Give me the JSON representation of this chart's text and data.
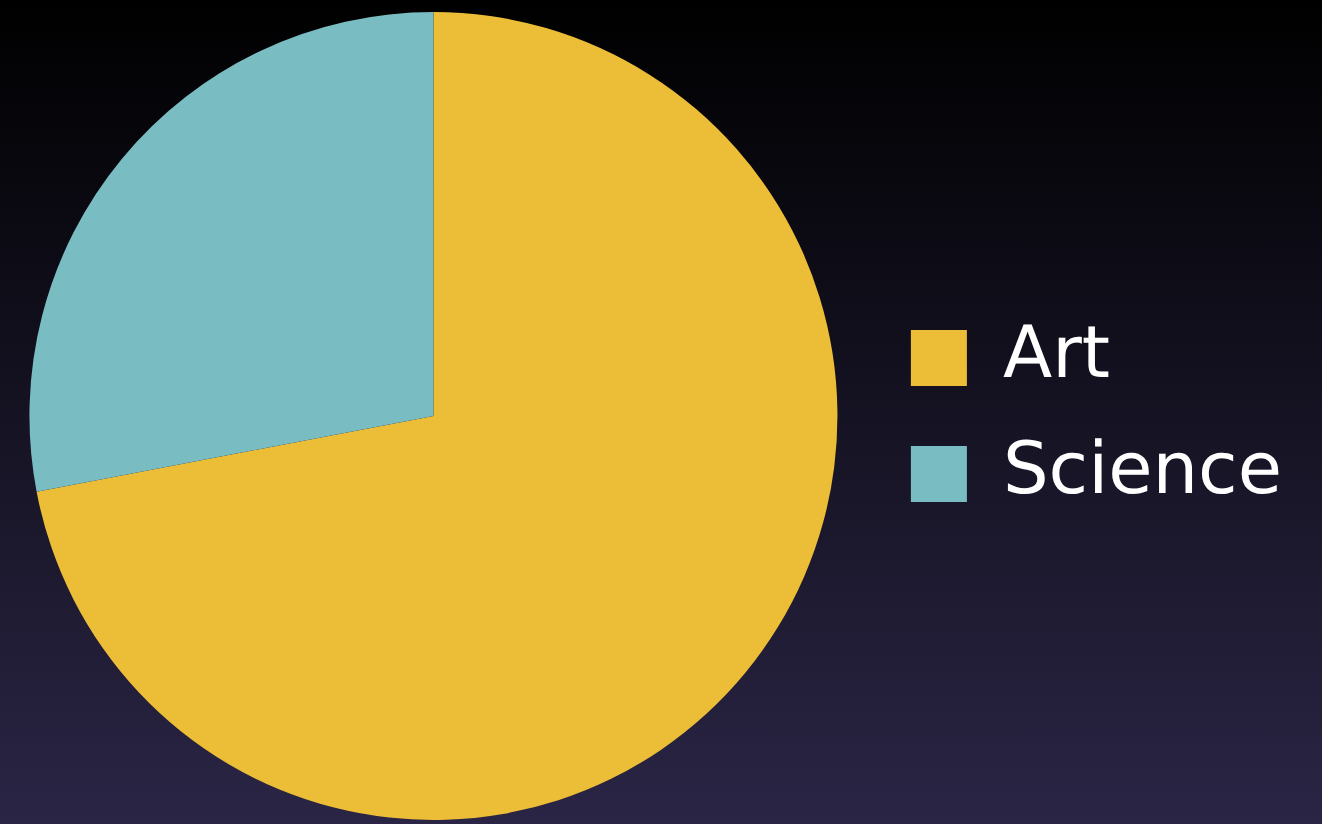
{
  "chart_data": {
    "type": "pie",
    "categories": [
      "Art",
      "Science"
    ],
    "values": [
      72,
      28
    ],
    "colors": [
      "#ecbd36",
      "#79bcc2"
    ],
    "legend": "right"
  }
}
